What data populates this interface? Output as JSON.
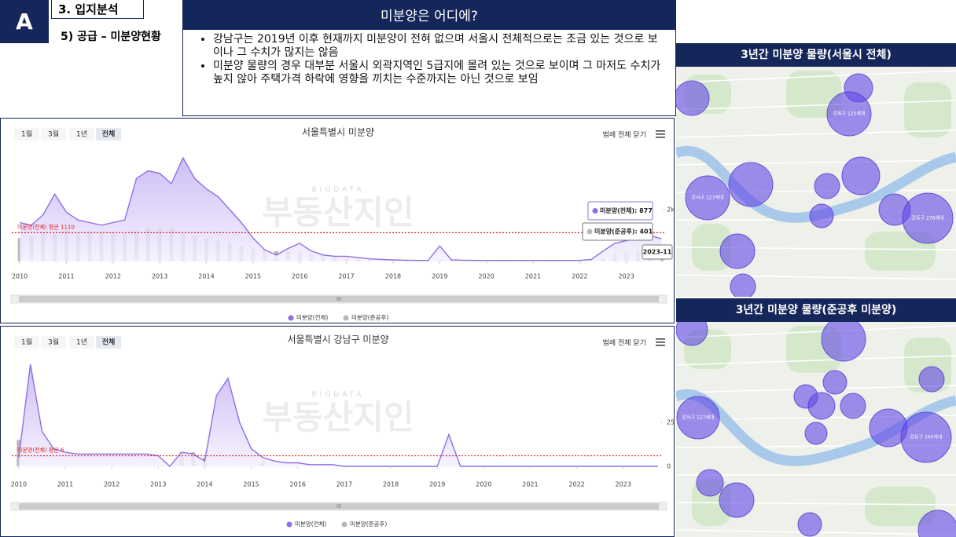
{
  "header": {
    "badge": "A",
    "section": "3. 입지분석",
    "subsection": "5) 공급 – 미분양현황"
  },
  "summary": {
    "title": "미분양은 어디에?",
    "bullets": [
      "강남구는 2019년 이후 현재까지 미분양이 전혀 없으며 서울시 전체적으로는 조금 있는 것으로 보이나 그 수치가 많지는 않음",
      "미분양 물량의 경우 대부분 서울시 외곽지역인 5급지에 몰려 있는 것으로 보이며 그 마저도 수치가 높지 않아 주택가격 하락에 영향을 끼치는 수준까지는 아닌 것으로 보임"
    ]
  },
  "chart_data": [
    {
      "type": "line",
      "title": "서울특별시 미분양",
      "buttons": [
        "1월",
        "3월",
        "1년",
        "전체"
      ],
      "legend_toggle": "범례 전체 닫기",
      "watermark": [
        "BIGDATA",
        "부동산지인"
      ],
      "x": [
        2010,
        2010.25,
        2010.5,
        2010.75,
        2011,
        2011.25,
        2011.5,
        2011.75,
        2012,
        2012.25,
        2012.5,
        2012.75,
        2013,
        2013.25,
        2013.5,
        2013.75,
        2014,
        2014.25,
        2014.5,
        2014.75,
        2015,
        2015.25,
        2015.5,
        2015.75,
        2016,
        2016.25,
        2016.5,
        2016.75,
        2017,
        2017.25,
        2017.5,
        2017.75,
        2018,
        2018.25,
        2018.5,
        2018.75,
        2019,
        2019.25,
        2019.5,
        2019.75,
        2020,
        2020.25,
        2020.5,
        2020.75,
        2021,
        2021.25,
        2021.5,
        2021.75,
        2022,
        2022.25,
        2022.5,
        2022.75,
        2023,
        2023.25,
        2023.5,
        2023.75
      ],
      "series": [
        {
          "name": "미분양(전체)",
          "color": "#8e6ee6",
          "values": [
            1500,
            1400,
            1800,
            2600,
            1900,
            1600,
            1500,
            1400,
            1500,
            1600,
            3200,
            3500,
            3400,
            3000,
            4000,
            3200,
            2800,
            2500,
            2000,
            1500,
            900,
            450,
            250,
            500,
            700,
            400,
            250,
            200,
            200,
            150,
            100,
            80,
            60,
            50,
            40,
            40,
            600,
            60,
            50,
            40,
            40,
            40,
            40,
            40,
            40,
            40,
            40,
            40,
            40,
            80,
            400,
            700,
            800,
            900,
            1000,
            877
          ]
        },
        {
          "name": "미분양(준공후)",
          "color": "#b8b8b8",
          "mark": "bar",
          "values": [
            900,
            1000,
            1100,
            1100,
            1200,
            1100,
            1100,
            1100,
            1100,
            1100,
            1200,
            1300,
            1300,
            1300,
            1100,
            1000,
            900,
            800,
            700,
            600,
            500,
            450,
            400,
            400,
            350,
            300,
            250,
            200,
            150,
            100,
            80,
            60,
            50,
            40,
            40,
            40,
            40,
            40,
            40,
            40,
            40,
            40,
            40,
            40,
            40,
            40,
            40,
            40,
            40,
            40,
            100,
            300,
            350,
            400,
            400,
            401
          ]
        }
      ],
      "xlim": [
        2009.83,
        2023.83
      ],
      "xticks": [
        2010,
        2011,
        2012,
        2013,
        2014,
        2015,
        2016,
        2017,
        2018,
        2019,
        2020,
        2021,
        2022,
        2023
      ],
      "ylim": [
        0,
        4200
      ],
      "yticks": [
        {
          "value": 2000,
          "label": "2k"
        }
      ],
      "average": {
        "value": 1110,
        "label": "미분양(전체) 평균 1110"
      },
      "tooltips": [
        "미분양(전체): 877",
        "미분양(준공후): 401",
        "2023-11"
      ]
    },
    {
      "type": "line",
      "title": "서울특별시 강남구 미분양",
      "buttons": [
        "1월",
        "3월",
        "1년",
        "전체"
      ],
      "legend_toggle": "범례 전체 닫기",
      "watermark": [
        "BIGDATA",
        "부동산지인"
      ],
      "x": [
        2010,
        2010.25,
        2010.5,
        2010.75,
        2011,
        2011.25,
        2011.5,
        2011.75,
        2012,
        2012.25,
        2012.5,
        2012.75,
        2013,
        2013.25,
        2013.5,
        2013.75,
        2014,
        2014.25,
        2014.5,
        2014.75,
        2015,
        2015.25,
        2015.5,
        2015.75,
        2016,
        2016.25,
        2016.5,
        2016.75,
        2017,
        2017.25,
        2017.5,
        2017.75,
        2018,
        2018.25,
        2018.5,
        2018.75,
        2019,
        2019.25,
        2019.5,
        2019.75,
        2020,
        2020.25,
        2020.5,
        2020.75,
        2021,
        2021.25,
        2021.5,
        2021.75,
        2022,
        2022.25,
        2022.5,
        2022.75,
        2023,
        2023.25,
        2023.5,
        2023.75
      ],
      "series": [
        {
          "name": "미분양(전체)",
          "color": "#8e6ee6",
          "values": [
            5,
            58,
            20,
            10,
            8,
            7,
            7,
            7,
            7,
            7,
            7,
            7,
            6,
            0,
            8,
            7,
            3,
            40,
            50,
            25,
            10,
            5,
            3,
            2,
            2,
            1,
            1,
            1,
            0,
            0,
            0,
            0,
            0,
            0,
            0,
            0,
            0,
            18,
            0,
            0,
            0,
            0,
            0,
            0,
            0,
            0,
            0,
            0,
            0,
            0,
            0,
            0,
            0,
            0,
            0,
            0
          ]
        },
        {
          "name": "미분양(준공후)",
          "color": "#b8b8b8",
          "mark": "bar",
          "values": [
            15,
            0,
            0,
            0,
            0,
            0,
            0,
            0,
            0,
            0,
            0,
            0,
            0,
            0,
            8,
            8,
            5,
            0,
            0,
            0,
            0,
            3,
            0,
            0,
            0,
            0,
            0,
            0,
            0,
            0,
            0,
            0,
            0,
            0,
            0,
            0,
            0,
            0,
            0,
            0,
            0,
            0,
            0,
            0,
            0,
            0,
            0,
            0,
            0,
            0,
            0,
            0,
            0,
            0,
            0,
            0
          ]
        }
      ],
      "xlim": [
        2009.85,
        2023.85
      ],
      "xticks": [
        2010,
        2011,
        2012,
        2013,
        2014,
        2015,
        2016,
        2017,
        2018,
        2019,
        2020,
        2021,
        2022,
        2023
      ],
      "ylim": [
        0,
        62
      ],
      "yticks": [
        0,
        25
      ],
      "average": {
        "value": 6,
        "label": "미분양(전체) 평균 6"
      }
    }
  ],
  "maps": [
    {
      "title": "3년간 미분양 물량(서울시 전체)",
      "bubbles": [
        "강서구 127세대",
        "강북구 125세대",
        "강동구 276세대"
      ]
    },
    {
      "title": "3년간 미분양 물량(준공후 미분양)",
      "bubbles": [
        "강서구 127세대",
        "강동구 160세대"
      ]
    }
  ]
}
